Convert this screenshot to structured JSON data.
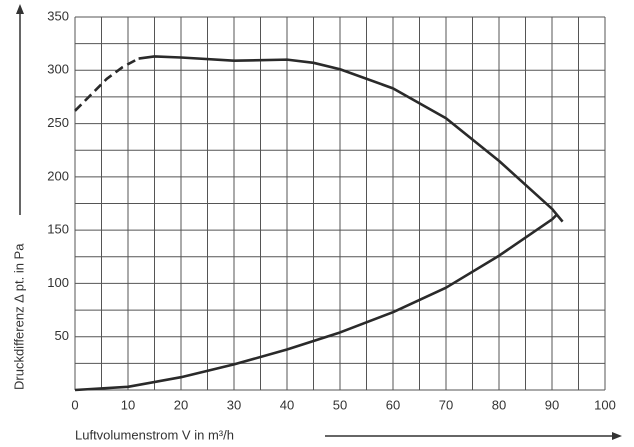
{
  "chart_data": {
    "type": "line",
    "xlabel": "Luftvolumenstrom V in m³/h",
    "ylabel": "Druckdifferenz Δ pt. in Pa",
    "xlim": [
      0,
      100
    ],
    "xticks": [
      0,
      10,
      20,
      30,
      40,
      50,
      60,
      70,
      80,
      90,
      100
    ],
    "ylim": [
      0,
      350
    ],
    "yticks": [
      50,
      100,
      150,
      200,
      250,
      300,
      350
    ],
    "xgrid": [
      0,
      5,
      10,
      15,
      20,
      25,
      30,
      35,
      40,
      45,
      50,
      55,
      60,
      65,
      70,
      75,
      80,
      85,
      90,
      95,
      100
    ],
    "ygrid": [
      0,
      25,
      50,
      75,
      100,
      125,
      150,
      175,
      200,
      225,
      250,
      275,
      300,
      325,
      350
    ],
    "grid": true,
    "series": [
      {
        "color": "#2a2a2a",
        "dashed": true,
        "x": [
          0,
          3,
          6,
          9,
          12
        ],
        "values": [
          262,
          277,
          292,
          303,
          311
        ]
      },
      {
        "color": "#2a2a2a",
        "dashed": false,
        "x": [
          12,
          15,
          20,
          30,
          40,
          45,
          50,
          60,
          70,
          80,
          90,
          92
        ],
        "values": [
          311,
          313,
          312,
          309,
          310,
          307,
          301,
          283,
          255,
          215,
          170,
          158
        ]
      },
      {
        "color": "#2a2a2a",
        "dashed": false,
        "x": [
          0,
          10,
          20,
          30,
          40,
          50,
          60,
          70,
          80,
          90,
          91
        ],
        "values": [
          0,
          3,
          12,
          24,
          38,
          54,
          73,
          96,
          126,
          160,
          165
        ]
      }
    ]
  }
}
